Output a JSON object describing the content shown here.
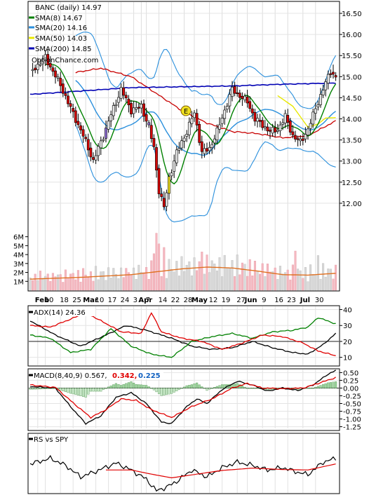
{
  "chart_data": [
    {
      "type": "candlestick",
      "panel": "price",
      "title": "BANC (daily) 14.97",
      "watermark": "OptionChance.com",
      "ylim": [
        11.5,
        16.75
      ],
      "y_ticks": [
        "16.50",
        "16.00",
        "15.50",
        "15.00",
        "14.50",
        "14.00",
        "13.50",
        "13.00",
        "12.50",
        "12.00"
      ],
      "x_month_labels": [
        "Feb",
        "Mar",
        "Apr",
        "May",
        "Jun",
        "Jul"
      ],
      "x_day_labels": [
        "10",
        "18",
        "25",
        "10",
        "17",
        "24",
        "3",
        "7",
        "14",
        "22",
        "28",
        "12",
        "19",
        "27",
        "9",
        "16",
        "23",
        "30"
      ],
      "earnings_marker": "E",
      "legend": [
        {
          "label": "SMA(8) 14.67",
          "color": "#008000"
        },
        {
          "label": "SMA(20) 14.16",
          "color": "#2a8fdc"
        },
        {
          "label": "SMA(50) 14.03",
          "color": "#e8e800"
        },
        {
          "label": "SMA(200) 14.85",
          "color": "#0000b4"
        }
      ],
      "close_anchors": [
        [
          0,
          15.1
        ],
        [
          6,
          15.45
        ],
        [
          12,
          14.8
        ],
        [
          16,
          14.25
        ],
        [
          21,
          13.6
        ],
        [
          25,
          13.0
        ],
        [
          29,
          13.6
        ],
        [
          32,
          14.1
        ],
        [
          36,
          14.7
        ],
        [
          40,
          14.2
        ],
        [
          44,
          14.3
        ],
        [
          47,
          13.8
        ],
        [
          49,
          13.3
        ],
        [
          51,
          12.3
        ],
        [
          53,
          11.9
        ],
        [
          55,
          12.6
        ],
        [
          58,
          13.2
        ],
        [
          62,
          13.7
        ],
        [
          65,
          14.15
        ],
        [
          68,
          13.2
        ],
        [
          71,
          13.3
        ],
        [
          74,
          13.7
        ],
        [
          77,
          14.2
        ],
        [
          80,
          14.7
        ],
        [
          83,
          14.55
        ],
        [
          86,
          14.4
        ],
        [
          89,
          14.0
        ],
        [
          92,
          13.85
        ],
        [
          95,
          13.7
        ],
        [
          98,
          13.75
        ],
        [
          101,
          14.05
        ],
        [
          104,
          13.6
        ],
        [
          107,
          13.45
        ],
        [
          110,
          13.75
        ],
        [
          113,
          14.25
        ],
        [
          116,
          14.7
        ],
        [
          119,
          15.15
        ],
        [
          121,
          14.97
        ]
      ],
      "sma200_anchors": [
        [
          0,
          14.58
        ],
        [
          20,
          14.66
        ],
        [
          40,
          14.74
        ],
        [
          60,
          14.76
        ],
        [
          80,
          14.78
        ],
        [
          100,
          14.82
        ],
        [
          121,
          14.85
        ]
      ],
      "sma50_anchors": [
        [
          98,
          14.55
        ],
        [
          104,
          14.3
        ],
        [
          110,
          13.8
        ],
        [
          114,
          13.88
        ],
        [
          117,
          14.02
        ],
        [
          121,
          14.03
        ]
      ],
      "red_ma_anchors": [
        [
          18,
          15.1
        ],
        [
          28,
          15.2
        ],
        [
          40,
          15.0
        ],
        [
          50,
          14.6
        ],
        [
          60,
          14.2
        ],
        [
          70,
          13.9
        ],
        [
          80,
          13.7
        ],
        [
          90,
          13.65
        ],
        [
          100,
          13.55
        ],
        [
          110,
          13.6
        ],
        [
          121,
          13.95
        ]
      ],
      "volume_axis_labels": [
        "6M",
        "5M",
        "4M",
        "3M",
        "2M",
        "1M"
      ],
      "volume_ylim": [
        0,
        6.6
      ],
      "volume_avg_anchors": [
        [
          0,
          1.25
        ],
        [
          20,
          1.45
        ],
        [
          40,
          1.75
        ],
        [
          60,
          2.4
        ],
        [
          70,
          2.6
        ],
        [
          80,
          2.5
        ],
        [
          90,
          2.15
        ],
        [
          100,
          1.75
        ],
        [
          110,
          1.7
        ],
        [
          121,
          1.9
        ]
      ]
    },
    {
      "type": "line",
      "panel": "adx",
      "title": "ADX(14) 24.36",
      "ylim": [
        5,
        42
      ],
      "y_ticks": [
        "40",
        "30",
        "20",
        "10"
      ],
      "series": [
        {
          "name": "ADX(14) 24.36",
          "color": "#000000",
          "anchors": [
            [
              0,
              33
            ],
            [
              10,
              24
            ],
            [
              20,
              17
            ],
            [
              30,
              24
            ],
            [
              38,
              30
            ],
            [
              46,
              27
            ],
            [
              56,
              22
            ],
            [
              64,
              17
            ],
            [
              72,
              15
            ],
            [
              80,
              16
            ],
            [
              88,
              20
            ],
            [
              96,
              16
            ],
            [
              104,
              13
            ],
            [
              110,
              12
            ],
            [
              116,
              18
            ],
            [
              121,
              25
            ]
          ]
        },
        {
          "color": "#008000",
          "anchors": [
            [
              0,
              24
            ],
            [
              8,
              22
            ],
            [
              16,
              13
            ],
            [
              24,
              15
            ],
            [
              32,
              28
            ],
            [
              40,
              17
            ],
            [
              48,
              12
            ],
            [
              56,
              10
            ],
            [
              64,
              20
            ],
            [
              72,
              23
            ],
            [
              80,
              25
            ],
            [
              88,
              22
            ],
            [
              96,
              26
            ],
            [
              104,
              27
            ],
            [
              110,
              29
            ],
            [
              114,
              35
            ],
            [
              121,
              31
            ]
          ]
        },
        {
          "color": "#e00000",
          "anchors": [
            [
              0,
              30
            ],
            [
              8,
              29
            ],
            [
              16,
              34
            ],
            [
              22,
              38
            ],
            [
              28,
              33
            ],
            [
              36,
              26
            ],
            [
              44,
              25
            ],
            [
              48,
              38
            ],
            [
              52,
              26
            ],
            [
              60,
              22
            ],
            [
              68,
              20
            ],
            [
              76,
              15
            ],
            [
              84,
              19
            ],
            [
              92,
              24
            ],
            [
              100,
              23
            ],
            [
              108,
              19
            ],
            [
              114,
              14
            ],
            [
              121,
              11
            ]
          ]
        }
      ]
    },
    {
      "type": "line",
      "panel": "macd",
      "title": "MACD(8,40,9) 0.567,",
      "macd_signal_label": "0.342,",
      "macd_hist_label": "0.225",
      "ylim": [
        -1.35,
        0.6
      ],
      "y_ticks": [
        "0.50",
        "0.25",
        "0.00",
        "-0.25",
        "-0.50",
        "-0.75",
        "-1.00",
        "-1.25"
      ],
      "series": [
        {
          "color": "#000000",
          "anchors": [
            [
              0,
              0.05
            ],
            [
              10,
              0.0
            ],
            [
              16,
              -0.6
            ],
            [
              22,
              -1.15
            ],
            [
              28,
              -0.9
            ],
            [
              34,
              -0.3
            ],
            [
              40,
              -0.15
            ],
            [
              46,
              -0.5
            ],
            [
              52,
              -1.1
            ],
            [
              56,
              -1.15
            ],
            [
              62,
              -0.6
            ],
            [
              66,
              -0.35
            ],
            [
              70,
              -0.5
            ],
            [
              76,
              -0.05
            ],
            [
              82,
              0.22
            ],
            [
              88,
              0.1
            ],
            [
              94,
              -0.1
            ],
            [
              100,
              0.0
            ],
            [
              106,
              -0.08
            ],
            [
              112,
              0.1
            ],
            [
              118,
              0.45
            ],
            [
              121,
              0.57
            ]
          ]
        },
        {
          "color": "#e00000",
          "anchors": [
            [
              0,
              0.1
            ],
            [
              10,
              0.02
            ],
            [
              18,
              -0.55
            ],
            [
              24,
              -0.95
            ],
            [
              30,
              -0.7
            ],
            [
              36,
              -0.35
            ],
            [
              42,
              -0.4
            ],
            [
              48,
              -0.7
            ],
            [
              56,
              -0.95
            ],
            [
              64,
              -0.6
            ],
            [
              72,
              -0.35
            ],
            [
              80,
              0.0
            ],
            [
              86,
              0.15
            ],
            [
              92,
              0.0
            ],
            [
              100,
              -0.02
            ],
            [
              108,
              0.0
            ],
            [
              114,
              0.15
            ],
            [
              121,
              0.34
            ]
          ]
        }
      ]
    },
    {
      "type": "line",
      "panel": "rs",
      "title": "RS vs SPY",
      "series": [
        {
          "color": "#000000",
          "anchors": [
            [
              0,
              0.58
            ],
            [
              8,
              0.7
            ],
            [
              14,
              0.55
            ],
            [
              20,
              0.3
            ],
            [
              26,
              0.42
            ],
            [
              34,
              0.6
            ],
            [
              40,
              0.45
            ],
            [
              46,
              0.25
            ],
            [
              50,
              0.0
            ],
            [
              54,
              0.08
            ],
            [
              58,
              0.2
            ],
            [
              64,
              0.45
            ],
            [
              70,
              0.3
            ],
            [
              76,
              0.5
            ],
            [
              82,
              0.62
            ],
            [
              88,
              0.55
            ],
            [
              94,
              0.45
            ],
            [
              100,
              0.5
            ],
            [
              106,
              0.4
            ],
            [
              110,
              0.35
            ],
            [
              116,
              0.62
            ],
            [
              121,
              0.7
            ]
          ]
        },
        {
          "color": "#e00000",
          "anchors": [
            [
              30,
              0.45
            ],
            [
              40,
              0.45
            ],
            [
              48,
              0.36
            ],
            [
              56,
              0.28
            ],
            [
              66,
              0.36
            ],
            [
              76,
              0.44
            ],
            [
              88,
              0.49
            ],
            [
              100,
              0.46
            ],
            [
              110,
              0.45
            ],
            [
              121,
              0.58
            ]
          ]
        }
      ]
    }
  ]
}
